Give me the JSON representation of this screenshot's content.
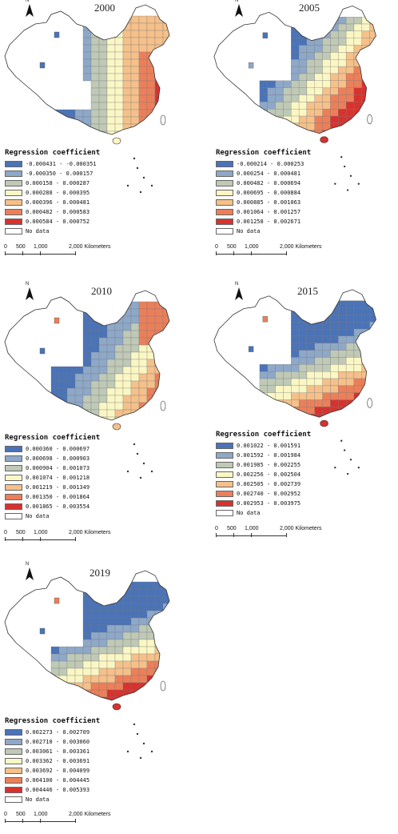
{
  "north_letter": "N",
  "legend_title": "Regression coefficient",
  "no_data_label": "No data",
  "scale": {
    "labels": [
      "0",
      "500",
      "1,000",
      "2,000 Kilometers"
    ]
  },
  "palette": [
    "#4a73b8",
    "#8ea8c8",
    "#bfc9b6",
    "#fbf7c4",
    "#f5c08a",
    "#eb7f5a",
    "#d7322e"
  ],
  "panels": [
    {
      "year": "2000",
      "legend": [
        "-0.000431 - -0.000351",
        "-0.000350 - 0.000157",
        "0.000158 - 0.000287",
        "0.000288 - 0.000395",
        "0.000396 - 0.000481",
        "0.000482 - 0.000583",
        "0.000584 - 0.000752"
      ],
      "pattern": "east_high"
    },
    {
      "year": "2005",
      "legend": [
        "-0.000214 - 0.000253",
        "0.000254 - 0.000481",
        "0.000482 - 0.000694",
        "0.000695 - 0.000884",
        "0.000885 - 0.001063",
        "0.001064 - 0.001257",
        "0.001258 - 0.002671"
      ],
      "pattern": "southeast_high"
    },
    {
      "year": "2010",
      "legend": [
        "0.000360 - 0.000697",
        "0.000698 - 0.000903",
        "0.000904 - 0.001073",
        "0.001074 - 0.001218",
        "0.001219 - 0.001349",
        "0.001350 - 0.001864",
        "0.001865 - 0.003554"
      ],
      "pattern": "northeast_high"
    },
    {
      "year": "2015",
      "legend": [
        "0.001022 - 0.001591",
        "0.001592 - 0.001984",
        "0.001985 - 0.002255",
        "0.002256 - 0.002504",
        "0.002505 - 0.002739",
        "0.002740 - 0.002952",
        "0.002953 - 0.003975"
      ],
      "pattern": "south_high"
    },
    {
      "year": "2019",
      "legend": [
        "0.002273 - 0.002709",
        "0.002710 - 0.003060",
        "0.003061 - 0.003361",
        "0.003362 - 0.003691",
        "0.003692 - 0.004099",
        "0.004100 - 0.004445",
        "0.004446 - 0.005393"
      ],
      "pattern": "south_high"
    }
  ]
}
